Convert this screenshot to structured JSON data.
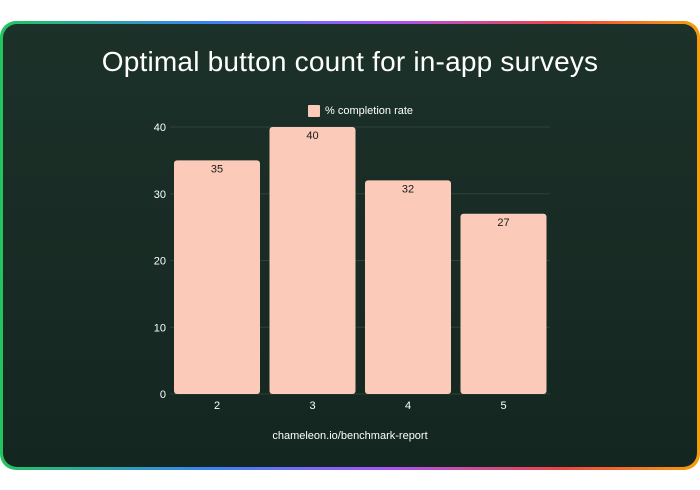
{
  "title": "Optimal button count for in-app surveys",
  "footer": "chameleon.io/benchmark-report",
  "colors": {
    "bar": "#fccab8",
    "background": "#182b24",
    "grid": "#2c4139",
    "text": "#ffffff"
  },
  "chart_data": {
    "type": "bar",
    "title": "Optimal button count for in-app surveys",
    "categories": [
      "2",
      "3",
      "4",
      "5"
    ],
    "series": [
      {
        "name": "% completion rate",
        "values": [
          35,
          40,
          32,
          27
        ]
      }
    ],
    "ylim": [
      0,
      40
    ],
    "yticks": [
      0,
      10,
      20,
      30,
      40
    ],
    "grid": true,
    "legend": "top-center",
    "data_labels": true
  }
}
